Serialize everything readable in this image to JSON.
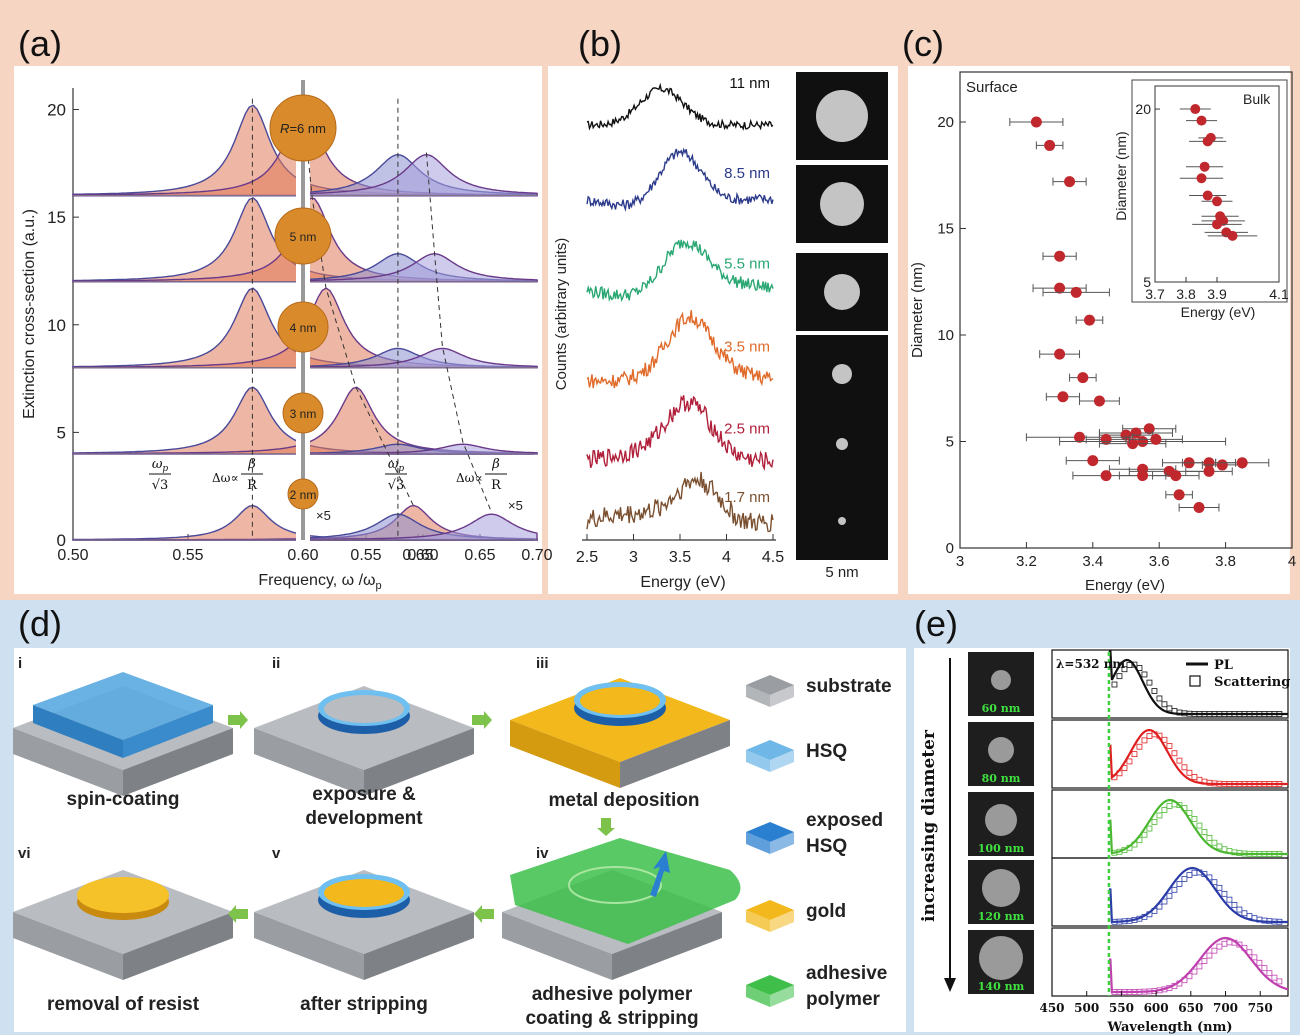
{
  "panel_labels": [
    "(a)",
    "(b)",
    "(c)",
    "(d)",
    "(e)"
  ],
  "colors": {
    "top_band": "#f7d9c8",
    "bottom_band": "#cfe0f0",
    "orange": "#e07a5a",
    "blue": "#8a8fd0",
    "red": "#c0282d",
    "green_arrow": "#7dc24b"
  },
  "chart_data": [
    {
      "panel": "a",
      "type": "line",
      "ylabel": "Extinction cross-section (a.u.)",
      "xlabel": "Frequency, ω /ω",
      "xlabel_sub": "p",
      "xlim_left": [
        0.5,
        0.7
      ],
      "xlim_right": [
        0.5,
        0.7
      ],
      "xticks_left": [
        "0.50",
        "0.55",
        "0.60",
        "0.65"
      ],
      "xticks_right": [
        "0.55",
        "0.60",
        "0.65",
        "0.70"
      ],
      "ylim": [
        0,
        21
      ],
      "yticks": [
        "0",
        "5",
        "10",
        "15",
        "20"
      ],
      "sizes": [
        "R=6 nm",
        "5 nm",
        "4 nm",
        "3 nm",
        "2 nm"
      ],
      "scale_notes": [
        "×5",
        "×5"
      ],
      "annotations": {
        "omega_p": "ω",
        "omega_sub": "p",
        "sqrt3": "√3",
        "delta_omega": "Δω∝",
        "beta": "β",
        "R": "R"
      },
      "left_peaks": [
        {
          "size": "R=6 nm",
          "baseline": 16,
          "peak1_x": 0.578,
          "peak2_x": 0.6,
          "height": 4.2
        },
        {
          "size": "5 nm",
          "baseline": 12,
          "peak1_x": 0.578,
          "peak2_x": 0.604,
          "height": 3.9
        },
        {
          "size": "4 nm",
          "baseline": 8,
          "peak1_x": 0.578,
          "peak2_x": 0.61,
          "height": 3.7
        },
        {
          "size": "3 nm",
          "baseline": 4,
          "peak1_x": 0.578,
          "peak2_x": 0.623,
          "height": 3.1
        },
        {
          "size": "2 nm",
          "baseline": 0,
          "peak1_x": 0.578,
          "peak2_x": 0.648,
          "height": 1.6
        }
      ],
      "right_peaks": [
        {
          "size": "R=6 nm",
          "baseline": 16,
          "peak1_x": 0.578,
          "peak2_x": 0.603,
          "height": 1.9
        },
        {
          "size": "5 nm",
          "baseline": 12,
          "peak1_x": 0.578,
          "peak2_x": 0.61,
          "height": 1.3
        },
        {
          "size": "4 nm",
          "baseline": 8,
          "peak1_x": 0.578,
          "peak2_x": 0.617,
          "height": 0.9
        },
        {
          "size": "3 nm",
          "baseline": 4,
          "peak1_x": 0.578,
          "peak2_x": 0.635,
          "height": 0.45
        },
        {
          "size": "2 nm",
          "baseline": 0,
          "peak1_x": 0.578,
          "peak2_x": 0.66,
          "height": 1.2
        }
      ]
    },
    {
      "panel": "b",
      "type": "line",
      "xlabel": "Energy (eV)",
      "ylabel": "Counts (arbitrary units)",
      "xlim": [
        2.5,
        4.5
      ],
      "xticks": [
        "2.5",
        "3",
        "3.5",
        "4",
        "4.5"
      ],
      "series": [
        {
          "name": "11 nm",
          "color": "#111111",
          "peak": 3.3
        },
        {
          "name": "8.5 nm",
          "color": "#2b3a8a",
          "peak": 3.5
        },
        {
          "name": "5.5 nm",
          "color": "#2aa773",
          "peak": 3.55
        },
        {
          "name": "3.5 nm",
          "color": "#e06a2a",
          "peak": 3.6
        },
        {
          "name": "2.5 nm",
          "color": "#b0203a",
          "peak": 3.6
        },
        {
          "name": "1.7 nm",
          "color": "#7a5030",
          "peak": 3.7
        }
      ],
      "scale_bar": "5 nm"
    },
    {
      "panel": "c",
      "type": "scatter",
      "title": "Surface",
      "xlabel": "Energy (eV)",
      "ylabel": "Diameter (nm)",
      "xlim": [
        3,
        4
      ],
      "ylim": [
        0,
        22
      ],
      "xticks": [
        "3",
        "3.2",
        "3.4",
        "3.6",
        "3.8",
        "4"
      ],
      "yticks": [
        "0",
        "5",
        "10",
        "15",
        "20"
      ],
      "points": [
        [
          3.23,
          20,
          0.08
        ],
        [
          3.27,
          18.9,
          0.04
        ],
        [
          3.33,
          17.2,
          0.05
        ],
        [
          3.3,
          13.7,
          0.05
        ],
        [
          3.3,
          12.2,
          0.08
        ],
        [
          3.35,
          12.0,
          0.1
        ],
        [
          3.39,
          10.7,
          0.04
        ],
        [
          3.3,
          9.1,
          0.06
        ],
        [
          3.37,
          8.0,
          0.04
        ],
        [
          3.31,
          7.1,
          0.05
        ],
        [
          3.42,
          6.9,
          0.06
        ],
        [
          3.57,
          5.6,
          0.08
        ],
        [
          3.53,
          5.4,
          0.11
        ],
        [
          3.5,
          5.3,
          0.08
        ],
        [
          3.36,
          5.2,
          0.16
        ],
        [
          3.44,
          5.1,
          0.06
        ],
        [
          3.55,
          5.0,
          0.25
        ],
        [
          3.52,
          4.9,
          0.1
        ],
        [
          3.59,
          5.1,
          0.08
        ],
        [
          3.4,
          4.1,
          0.08
        ],
        [
          3.69,
          4.0,
          0.08
        ],
        [
          3.75,
          4.0,
          0.08
        ],
        [
          3.79,
          3.9,
          0.06
        ],
        [
          3.85,
          4.0,
          0.08
        ],
        [
          3.55,
          3.7,
          0.1
        ],
        [
          3.63,
          3.6,
          0.12
        ],
        [
          3.75,
          3.6,
          0.07
        ],
        [
          3.44,
          3.4,
          0.1
        ],
        [
          3.55,
          3.4,
          0.07
        ],
        [
          3.65,
          3.4,
          0.07
        ],
        [
          3.66,
          2.5,
          0.04
        ],
        [
          3.72,
          1.9,
          0.06
        ]
      ],
      "inset": {
        "title": "Bulk",
        "xlabel": "Energy (eV)",
        "ylabel": "Diameter (nm)",
        "xlim": [
          3.7,
          4.1
        ],
        "ylim": [
          5,
          22
        ],
        "xticks": [
          "3.7",
          "3.8",
          "3.9",
          "4.1"
        ],
        "yticks": [
          "5",
          "20"
        ],
        "points": [
          [
            3.83,
            20,
            0.05
          ],
          [
            3.85,
            19,
            0.05
          ],
          [
            3.88,
            17.5,
            0.04
          ],
          [
            3.87,
            17.2,
            0.06
          ],
          [
            3.86,
            15,
            0.06
          ],
          [
            3.85,
            14,
            0.07
          ],
          [
            3.87,
            12.5,
            0.06
          ],
          [
            3.9,
            12,
            0.05
          ],
          [
            3.91,
            10.7,
            0.06
          ],
          [
            3.92,
            10.3,
            0.07
          ],
          [
            3.9,
            10.0,
            0.08
          ],
          [
            3.93,
            9.3,
            0.07
          ],
          [
            3.95,
            9.0,
            0.08
          ]
        ]
      }
    },
    {
      "panel": "e",
      "type": "line",
      "xlabel": "Wavelength (nm)",
      "xlim": [
        450,
        790
      ],
      "xticks": [
        "450",
        "500",
        "550",
        "600",
        "650",
        "700",
        "750"
      ],
      "laser_label": "λ=532 nm",
      "laser_x": 532,
      "legend": [
        "PL",
        "Scattering"
      ],
      "side_label": "increasing diameter",
      "series": [
        {
          "name": "60 nm",
          "color": "#111111",
          "peak": 558
        },
        {
          "name": "80 nm",
          "color": "#e02020",
          "peak": 590
        },
        {
          "name": "100 nm",
          "color": "#4cb832",
          "peak": 620
        },
        {
          "name": "120 nm",
          "color": "#2b3ca8",
          "peak": 652
        },
        {
          "name": "140 nm",
          "color": "#c040b0",
          "peak": 700
        }
      ]
    }
  ],
  "process": {
    "steps": [
      {
        "num": "i",
        "label": [
          "spin-coating"
        ]
      },
      {
        "num": "ii",
        "label": [
          "exposure &",
          "development"
        ]
      },
      {
        "num": "iii",
        "label": [
          "metal deposition"
        ]
      },
      {
        "num": "iv",
        "label": [
          "adhesive polymer",
          "coating & stripping"
        ]
      },
      {
        "num": "v",
        "label": [
          "after stripping"
        ]
      },
      {
        "num": "vi",
        "label": [
          "removal of resist"
        ]
      }
    ],
    "legend": [
      {
        "label": [
          "substrate"
        ],
        "color": "#9a9da2"
      },
      {
        "label": [
          "HSQ"
        ],
        "color": "#6fb7e6"
      },
      {
        "label": [
          "exposed",
          "HSQ"
        ],
        "color": "#2a7fd0"
      },
      {
        "label": [
          "gold"
        ],
        "color": "#f2b81c"
      },
      {
        "label": [
          "adhesive",
          "polymer"
        ],
        "color": "#3fbf4a"
      }
    ]
  }
}
